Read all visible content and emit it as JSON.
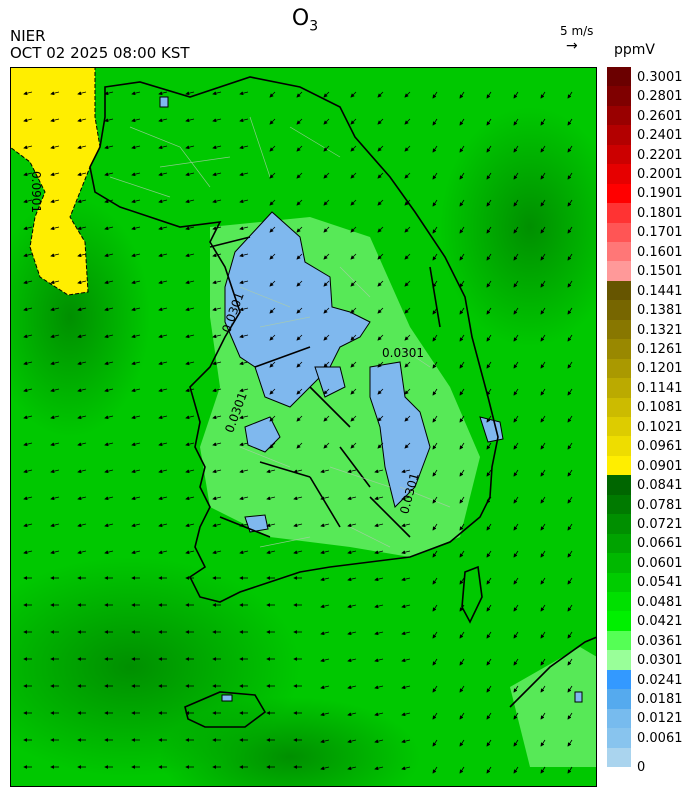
{
  "header": {
    "title_main": "O",
    "title_sub": "3",
    "organization": "NIER",
    "timestamp": "OCT 02 2025 08:00 KST",
    "wind_reference": "5 m/s",
    "unit": "ppmV"
  },
  "contour_labels": [
    "0.0901",
    "0.0301",
    "0.0301",
    "0.0301",
    "0.0301"
  ],
  "colorbar": {
    "labels": [
      "0.3001",
      "0.2801",
      "0.2601",
      "0.2401",
      "0.2201",
      "0.2001",
      "0.1901",
      "0.1801",
      "0.1701",
      "0.1601",
      "0.1501",
      "0.1441",
      "0.1381",
      "0.1321",
      "0.1261",
      "0.1201",
      "0.1141",
      "0.1081",
      "0.1021",
      "0.0961",
      "0.0901",
      "0.0841",
      "0.0781",
      "0.0721",
      "0.0661",
      "0.0601",
      "0.0541",
      "0.0481",
      "0.0421",
      "0.0361",
      "0.0301",
      "0.0241",
      "0.0181",
      "0.0121",
      "0.0061",
      "0"
    ],
    "colors": [
      "#6b0000",
      "#7f0000",
      "#990000",
      "#b30000",
      "#cc0000",
      "#e60000",
      "#ff0000",
      "#ff3333",
      "#ff5555",
      "#ff7777",
      "#ff9999",
      "#665500",
      "#776600",
      "#887700",
      "#998800",
      "#aa9900",
      "#bbaa00",
      "#ccbb00",
      "#ddcc00",
      "#eedd00",
      "#ffee00",
      "#006600",
      "#007a00",
      "#008f00",
      "#00a300",
      "#00b800",
      "#00cc00",
      "#00e000",
      "#00f000",
      "#55ff55",
      "#99ff99",
      "#3399ff",
      "#55aaee",
      "#77bbee",
      "#88c4ee",
      "#aad4ee"
    ]
  }
}
